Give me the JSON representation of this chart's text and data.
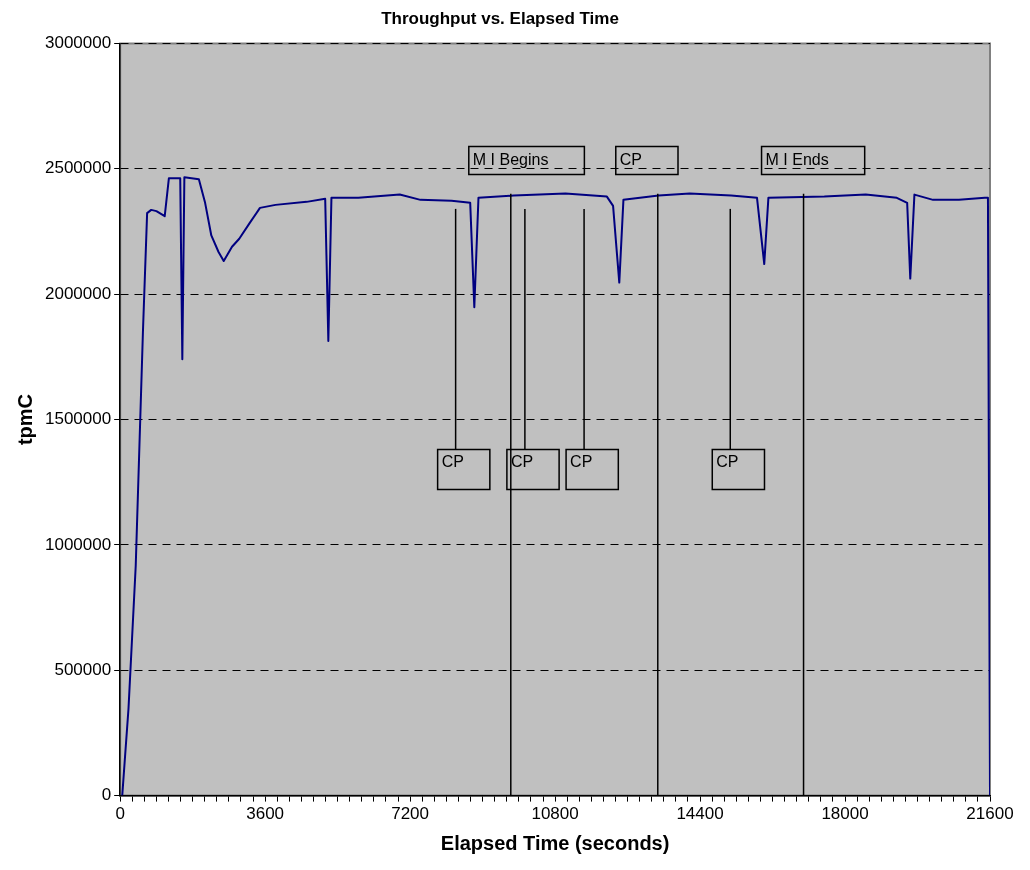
{
  "chart_data": {
    "type": "line",
    "title": "Throughput vs. Elapsed Time",
    "xlabel": "Elapsed Time (seconds)",
    "ylabel": "tpmC",
    "xlim": [
      0,
      21600
    ],
    "ylim": [
      0,
      3000000
    ],
    "xticks": [
      0,
      {
        "value": 300,
        "label": null
      },
      {
        "value": 600,
        "label": null
      },
      {
        "value": 900,
        "label": null
      },
      {
        "value": 1200,
        "label": null
      },
      {
        "value": 1500,
        "label": null
      },
      {
        "value": 1800,
        "label": null
      },
      {
        "value": 2100,
        "label": null
      },
      {
        "value": 2400,
        "label": null
      },
      {
        "value": 2700,
        "label": null
      },
      {
        "value": 3000,
        "label": null
      },
      {
        "value": 3300,
        "label": null
      },
      3600,
      {
        "value": 3900,
        "label": null
      },
      {
        "value": 4200,
        "label": null
      },
      {
        "value": 4500,
        "label": null
      },
      {
        "value": 4800,
        "label": null
      },
      {
        "value": 5100,
        "label": null
      },
      {
        "value": 5400,
        "label": null
      },
      {
        "value": 5700,
        "label": null
      },
      {
        "value": 6000,
        "label": null
      },
      {
        "value": 6300,
        "label": null
      },
      {
        "value": 6600,
        "label": null
      },
      {
        "value": 6900,
        "label": null
      },
      7200,
      {
        "value": 7500,
        "label": null
      },
      {
        "value": 7800,
        "label": null
      },
      {
        "value": 8100,
        "label": null
      },
      {
        "value": 8400,
        "label": null
      },
      {
        "value": 8700,
        "label": null
      },
      {
        "value": 9000,
        "label": null
      },
      {
        "value": 9300,
        "label": null
      },
      {
        "value": 9600,
        "label": null
      },
      {
        "value": 9900,
        "label": null
      },
      {
        "value": 10200,
        "label": null
      },
      {
        "value": 10500,
        "label": null
      },
      10800,
      {
        "value": 11100,
        "label": null
      },
      {
        "value": 11400,
        "label": null
      },
      {
        "value": 11700,
        "label": null
      },
      {
        "value": 12000,
        "label": null
      },
      {
        "value": 12300,
        "label": null
      },
      {
        "value": 12600,
        "label": null
      },
      {
        "value": 12900,
        "label": null
      },
      {
        "value": 13200,
        "label": null
      },
      {
        "value": 13500,
        "label": null
      },
      {
        "value": 13800,
        "label": null
      },
      {
        "value": 14100,
        "label": null
      },
      14400,
      {
        "value": 14700,
        "label": null
      },
      {
        "value": 15000,
        "label": null
      },
      {
        "value": 15300,
        "label": null
      },
      {
        "value": 15600,
        "label": null
      },
      {
        "value": 15900,
        "label": null
      },
      {
        "value": 16200,
        "label": null
      },
      {
        "value": 16500,
        "label": null
      },
      {
        "value": 16800,
        "label": null
      },
      {
        "value": 17100,
        "label": null
      },
      {
        "value": 17400,
        "label": null
      },
      {
        "value": 17700,
        "label": null
      },
      18000,
      {
        "value": 18300,
        "label": null
      },
      {
        "value": 18600,
        "label": null
      },
      {
        "value": 18900,
        "label": null
      },
      {
        "value": 19200,
        "label": null
      },
      {
        "value": 19500,
        "label": null
      },
      {
        "value": 19800,
        "label": null
      },
      {
        "value": 20100,
        "label": null
      },
      {
        "value": 20400,
        "label": null
      },
      {
        "value": 20700,
        "label": null
      },
      {
        "value": 21000,
        "label": null
      },
      {
        "value": 21300,
        "label": null
      },
      21600
    ],
    "yticks": [
      0,
      500000,
      1000000,
      1500000,
      2000000,
      2500000,
      3000000
    ],
    "grid": "y",
    "legend": false,
    "marker": "none",
    "line_style": "solid",
    "series": [
      {
        "color": "#000080",
        "x": [
          51,
          206,
          386,
          566,
          669,
          771,
          900,
          1106,
          1209,
          1491,
          1543,
          1594,
          1954,
          2109,
          2263,
          2443,
          2571,
          2777,
          2957,
          3214,
          3471,
          3857,
          4629,
          5091,
          5169,
          5246,
          5914,
          6943,
          7457,
          8229,
          8692,
          8794,
          8897,
          9771,
          11057,
          12086,
          12240,
          12394,
          12497,
          13371,
          14143,
          15171,
          15814,
          15994,
          16097,
          17486,
          18514,
          19286,
          19543,
          19620,
          19723,
          20186,
          20829,
          21471,
          21549,
          21600
        ],
        "values": [
          0,
          346000,
          917000,
          1855000,
          2323000,
          2336000,
          2331000,
          2311000,
          2462000,
          2462000,
          1740000,
          2466000,
          2458000,
          2364000,
          2234000,
          2168000,
          2132000,
          2189000,
          2221000,
          2283000,
          2344000,
          2356000,
          2368000,
          2380000,
          1813000,
          2384000,
          2384000,
          2397000,
          2376000,
          2372000,
          2364000,
          1948000,
          2384000,
          2393000,
          2401000,
          2389000,
          2352000,
          2046000,
          2376000,
          2393000,
          2401000,
          2393000,
          2384000,
          2120000,
          2384000,
          2389000,
          2397000,
          2384000,
          2364000,
          2062000,
          2397000,
          2376000,
          2376000,
          2384000,
          2384000,
          0
        ]
      }
    ],
    "ref_lines": [
      {
        "axis": "x",
        "value": 9700,
        "label": "M I Begins",
        "color": "#000000"
      },
      {
        "axis": "x",
        "value": 16970,
        "label": "M I Ends",
        "color": "#000000"
      },
      {
        "axis": "x",
        "value": 8330,
        "label": "CP",
        "color": "#000000"
      },
      {
        "axis": "x",
        "value": 10050,
        "label": "CP",
        "color": "#000000"
      },
      {
        "axis": "x",
        "value": 11520,
        "label": "CP",
        "color": "#000000"
      },
      {
        "axis": "x",
        "value": 13350,
        "label": "CP",
        "color": "#000000"
      },
      {
        "axis": "x",
        "value": 15150,
        "label": "CP",
        "color": "#000000"
      }
    ]
  }
}
